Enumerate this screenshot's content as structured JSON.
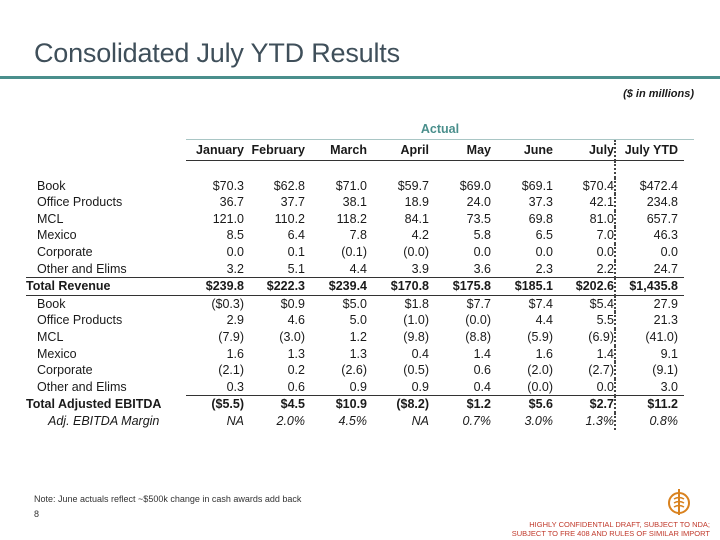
{
  "title": "Consolidated July YTD Results",
  "units": "($ in millions)",
  "group_header": "Actual",
  "columns": [
    "January",
    "February",
    "March",
    "April",
    "May",
    "June",
    "July",
    "July YTD"
  ],
  "revenue_rows": [
    {
      "label": "Book",
      "values": [
        "$70.3",
        "$62.8",
        "$71.0",
        "$59.7",
        "$69.0",
        "$69.1",
        "$70.4",
        "$472.4"
      ]
    },
    {
      "label": "Office Products",
      "values": [
        "36.7",
        "37.7",
        "38.1",
        "18.9",
        "24.0",
        "37.3",
        "42.1",
        "234.8"
      ]
    },
    {
      "label": "MCL",
      "values": [
        "121.0",
        "110.2",
        "118.2",
        "84.1",
        "73.5",
        "69.8",
        "81.0",
        "657.7"
      ]
    },
    {
      "label": "Mexico",
      "values": [
        "8.5",
        "6.4",
        "7.8",
        "4.2",
        "5.8",
        "6.5",
        "7.0",
        "46.3"
      ]
    },
    {
      "label": "Corporate",
      "values": [
        "0.0",
        "0.1",
        "(0.1)",
        "(0.0)",
        "0.0",
        "0.0",
        "0.0",
        "0.0"
      ]
    },
    {
      "label": "Other and Elims",
      "values": [
        "3.2",
        "5.1",
        "4.4",
        "3.9",
        "3.6",
        "2.3",
        "2.2",
        "24.7"
      ]
    }
  ],
  "total_revenue": {
    "label": "Total Revenue",
    "values": [
      "$239.8",
      "$222.3",
      "$239.4",
      "$170.8",
      "$175.8",
      "$185.1",
      "$202.6",
      "$1,435.8"
    ]
  },
  "ebitda_rows": [
    {
      "label": "Book",
      "values": [
        "($0.3)",
        "$0.9",
        "$5.0",
        "$1.8",
        "$7.7",
        "$7.4",
        "$5.4",
        "27.9"
      ]
    },
    {
      "label": "Office Products",
      "values": [
        "2.9",
        "4.6",
        "5.0",
        "(1.0)",
        "(0.0)",
        "4.4",
        "5.5",
        "21.3"
      ]
    },
    {
      "label": "MCL",
      "values": [
        "(7.9)",
        "(3.0)",
        "1.2",
        "(9.8)",
        "(8.8)",
        "(5.9)",
        "(6.9)",
        "(41.0)"
      ]
    },
    {
      "label": "Mexico",
      "values": [
        "1.6",
        "1.3",
        "1.3",
        "0.4",
        "1.4",
        "1.6",
        "1.4",
        "9.1"
      ]
    },
    {
      "label": "Corporate",
      "values": [
        "(2.1)",
        "0.2",
        "(2.6)",
        "(0.5)",
        "0.6",
        "(2.0)",
        "(2.7)",
        "(9.1)"
      ]
    },
    {
      "label": "Other and Elims",
      "values": [
        "0.3",
        "0.6",
        "0.9",
        "0.9",
        "0.4",
        "(0.0)",
        "0.0",
        "3.0"
      ]
    }
  ],
  "total_ebitda": {
    "label": "Total Adjusted EBITDA",
    "values": [
      "($5.5)",
      "$4.5",
      "$10.9",
      "($8.2)",
      "$1.2",
      "$5.6",
      "$2.7",
      "$11.2"
    ]
  },
  "margin": {
    "label": "Adj. EBITDA Margin",
    "values": [
      "NA",
      "2.0%",
      "4.5%",
      "NA",
      "0.7%",
      "3.0%",
      "1.3%",
      "0.8%"
    ]
  },
  "note": "Note: June actuals reflect ~$500k change in cash awards add back",
  "page_number": "8",
  "confidential_line1": "HIGHLY CONFIDENTIAL DRAFT, SUBJECT TO NDA;",
  "confidential_line2": "SUBJECT TO FRE 408 AND RULES OF SIMILAR IMPORT",
  "colors": {
    "accent": "#4a8f8c",
    "title": "#3f4f5a",
    "confidential": "#c0392b",
    "logo": "#d9821f"
  }
}
